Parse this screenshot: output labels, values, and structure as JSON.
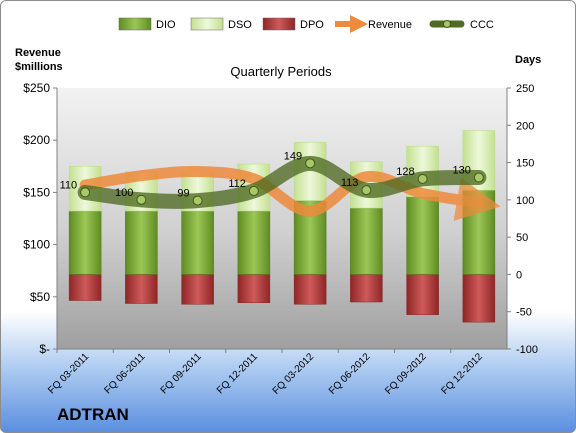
{
  "company": "ADTRAN",
  "chart_data": {
    "type": "bar",
    "title": "Quarterly Periods",
    "ylabel_left": "Revenue\n$millions",
    "ylabel_right": "Days",
    "categories": [
      "FQ 03-2011",
      "FQ 06-2011",
      "FQ 09-2011",
      "FQ 12-2011",
      "FQ 03-2012",
      "FQ 06-2012",
      "FQ 09-2012",
      "FQ 12-2012"
    ],
    "left_axis": {
      "min": 0,
      "max": 250,
      "ticks": [
        0,
        50,
        100,
        150,
        200,
        250
      ],
      "tick_labels": [
        "$-",
        "$50",
        "$100",
        "$150",
        "$200",
        "$250"
      ]
    },
    "right_axis": {
      "min": -100,
      "max": 250,
      "ticks": [
        -100,
        -50,
        0,
        50,
        100,
        150,
        200,
        250
      ],
      "tick_labels": [
        "-100",
        "-50",
        "0",
        "50",
        "100",
        "150",
        "200",
        "250"
      ]
    },
    "series": [
      {
        "name": "DIO",
        "axis": "right",
        "color": "#7eaa35",
        "values": [
          85,
          85,
          85,
          85,
          99,
          89,
          104,
          113
        ]
      },
      {
        "name": "DSO",
        "axis": "right",
        "color": "#d8edb4",
        "values": [
          60,
          53,
          51,
          63,
          78,
          62,
          68,
          80
        ]
      },
      {
        "name": "DPO",
        "axis": "right",
        "color": "#b83c3c",
        "values": [
          -35,
          -39,
          -40,
          -38,
          -40,
          -37,
          -54,
          -64
        ]
      },
      {
        "name": "Revenue",
        "axis": "left",
        "color": "#ee8a3c",
        "values": [
          157,
          166,
          170,
          163,
          132,
          165,
          149,
          140
        ]
      },
      {
        "name": "CCC",
        "axis": "right",
        "color": "#4f6a22",
        "values": [
          110,
          100,
          99,
          112,
          149,
          113,
          128,
          130
        ],
        "labels": [
          "110",
          "100",
          "99",
          "112",
          "149",
          "113",
          "128",
          "130"
        ]
      }
    ],
    "legend_position": "top",
    "grid": false
  }
}
